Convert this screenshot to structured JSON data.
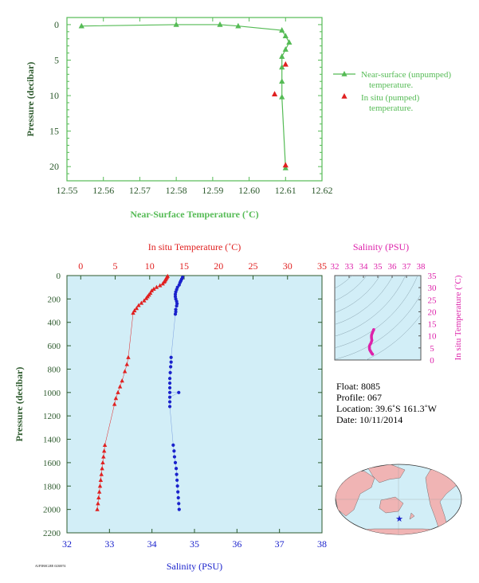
{
  "colors": {
    "green": "#55bb55",
    "dark_green": "#2d5a2d",
    "red": "#e02020",
    "blue": "#1a22cc",
    "magenta": "#dd22aa",
    "panel_bg": "#d2eef7",
    "land": "#f0b4b4"
  },
  "chart_data": [
    {
      "type": "line",
      "xlabel": "Near-Surface Temperature (˚C)",
      "ylabel": "Pressure (decibar)",
      "xlim": [
        12.55,
        12.62
      ],
      "ylim": [
        22,
        -1
      ],
      "xticks": [
        "12.55",
        "12.56",
        "12.57",
        "12.58",
        "12.59",
        "12.60",
        "12.61",
        "12.62"
      ],
      "yticks": [
        "0",
        "5",
        "10",
        "15",
        "20"
      ],
      "series": [
        {
          "name": "Near-surface (unpumped) temperature.",
          "marker": "triangle",
          "points": [
            [
              12.554,
              0.2
            ],
            [
              12.58,
              0.0
            ],
            [
              12.592,
              0.0
            ],
            [
              12.597,
              0.2
            ],
            [
              12.609,
              0.8
            ],
            [
              12.61,
              1.6
            ],
            [
              12.611,
              2.5
            ],
            [
              12.61,
              3.5
            ],
            [
              12.609,
              4.5
            ],
            [
              12.609,
              6.0
            ],
            [
              12.609,
              8.0
            ],
            [
              12.609,
              10.2
            ],
            [
              12.61,
              20.2
            ]
          ]
        },
        {
          "name": "In situ (pumped) temperature.",
          "marker": "triangle",
          "points": [
            [
              12.61,
              5.6
            ],
            [
              12.607,
              9.8
            ],
            [
              12.61,
              19.8
            ]
          ]
        }
      ],
      "legend": [
        "Near-surface (unpumped)",
        "temperature.",
        "In situ (pumped)",
        "temperature."
      ]
    },
    {
      "type": "scatter",
      "title_top": "In situ Temperature (˚C)",
      "xlabel_bottom": "Salinity (PSU)",
      "ylabel": "Pressure (decibar)",
      "temp_lim": [
        -2,
        35
      ],
      "sal_lim": [
        32,
        38
      ],
      "plim": [
        2200,
        0
      ],
      "temp_ticks": [
        "0",
        "5",
        "10",
        "15",
        "20",
        "25",
        "30",
        "35"
      ],
      "sal_ticks": [
        "32",
        "33",
        "34",
        "35",
        "36",
        "37",
        "38"
      ],
      "p_ticks": [
        "0",
        "200",
        "400",
        "600",
        "800",
        "1000",
        "1200",
        "1400",
        "1600",
        "1800",
        "2000",
        "2200"
      ],
      "temperature_points": [
        [
          12.6,
          5
        ],
        [
          12.5,
          15
        ],
        [
          12.4,
          25
        ],
        [
          12.3,
          35
        ],
        [
          12.2,
          45
        ],
        [
          12.1,
          55
        ],
        [
          11.9,
          70
        ],
        [
          11.5,
          85
        ],
        [
          11.0,
          100
        ],
        [
          10.6,
          115
        ],
        [
          10.3,
          130
        ],
        [
          10.1,
          150
        ],
        [
          9.9,
          165
        ],
        [
          9.7,
          180
        ],
        [
          9.5,
          195
        ],
        [
          9.2,
          215
        ],
        [
          8.8,
          235
        ],
        [
          8.4,
          255
        ],
        [
          8.1,
          280
        ],
        [
          7.8,
          300
        ],
        [
          7.6,
          320
        ],
        [
          6.9,
          700
        ],
        [
          6.7,
          760
        ],
        [
          6.4,
          820
        ],
        [
          6.0,
          900
        ],
        [
          5.7,
          950
        ],
        [
          5.4,
          1000
        ],
        [
          5.1,
          1050
        ],
        [
          4.9,
          1100
        ],
        [
          3.5,
          1450
        ],
        [
          3.4,
          1500
        ],
        [
          3.3,
          1550
        ],
        [
          3.2,
          1600
        ],
        [
          3.1,
          1650
        ],
        [
          3.0,
          1700
        ],
        [
          2.9,
          1750
        ],
        [
          2.8,
          1800
        ],
        [
          2.7,
          1850
        ],
        [
          2.6,
          1900
        ],
        [
          2.5,
          1950
        ],
        [
          2.4,
          2000
        ]
      ],
      "salinity_points": [
        [
          34.72,
          15
        ],
        [
          34.7,
          30
        ],
        [
          34.68,
          45
        ],
        [
          34.66,
          60
        ],
        [
          34.64,
          80
        ],
        [
          34.6,
          100
        ],
        [
          34.58,
          120
        ],
        [
          34.56,
          140
        ],
        [
          34.55,
          160
        ],
        [
          34.55,
          180
        ],
        [
          34.56,
          200
        ],
        [
          34.58,
          220
        ],
        [
          34.59,
          240
        ],
        [
          34.58,
          260
        ],
        [
          34.56,
          290
        ],
        [
          34.56,
          310
        ],
        [
          34.55,
          330
        ],
        [
          34.45,
          700
        ],
        [
          34.45,
          740
        ],
        [
          34.44,
          780
        ],
        [
          34.43,
          830
        ],
        [
          34.42,
          880
        ],
        [
          34.42,
          920
        ],
        [
          34.42,
          960
        ],
        [
          34.42,
          1000
        ],
        [
          34.63,
          1000
        ],
        [
          34.42,
          1040
        ],
        [
          34.42,
          1080
        ],
        [
          34.42,
          1120
        ],
        [
          34.5,
          1450
        ],
        [
          34.52,
          1500
        ],
        [
          34.53,
          1550
        ],
        [
          34.55,
          1600
        ],
        [
          34.57,
          1650
        ],
        [
          34.58,
          1700
        ],
        [
          34.59,
          1750
        ],
        [
          34.6,
          1800
        ],
        [
          34.61,
          1850
        ],
        [
          34.62,
          1900
        ],
        [
          34.63,
          1950
        ],
        [
          34.64,
          2000
        ]
      ]
    },
    {
      "type": "scatter",
      "title": "Salinity (PSU)",
      "ylabel": "In situ Temperature (˚C)",
      "xlim": [
        32,
        38
      ],
      "ylim": [
        0,
        35
      ],
      "xticks": [
        "32",
        "33",
        "34",
        "35",
        "36",
        "37",
        "38"
      ],
      "yticks": [
        "0",
        "5",
        "10",
        "15",
        "20",
        "25",
        "30",
        "35"
      ],
      "points": [
        [
          34.72,
          12.6
        ],
        [
          34.7,
          12.4
        ],
        [
          34.66,
          11.8
        ],
        [
          34.62,
          11.2
        ],
        [
          34.58,
          10.6
        ],
        [
          34.56,
          10.0
        ],
        [
          34.56,
          9.4
        ],
        [
          34.57,
          8.8
        ],
        [
          34.59,
          8.2
        ],
        [
          34.56,
          7.6
        ],
        [
          34.52,
          7.0
        ],
        [
          34.46,
          6.4
        ],
        [
          34.42,
          5.8
        ],
        [
          34.42,
          5.2
        ],
        [
          34.42,
          4.8
        ],
        [
          34.44,
          4.2
        ],
        [
          34.48,
          3.8
        ],
        [
          34.52,
          3.4
        ],
        [
          34.56,
          3.0
        ],
        [
          34.6,
          2.6
        ],
        [
          34.64,
          2.4
        ]
      ]
    }
  ],
  "float_info": {
    "float": "Float:  8085",
    "profile": "Profile:  067",
    "location": "Location:  39.6˚S  161.3˚W",
    "date": "Date:  10/11/2014"
  },
  "footer_code": "A1F5B0C2EE  0230074"
}
